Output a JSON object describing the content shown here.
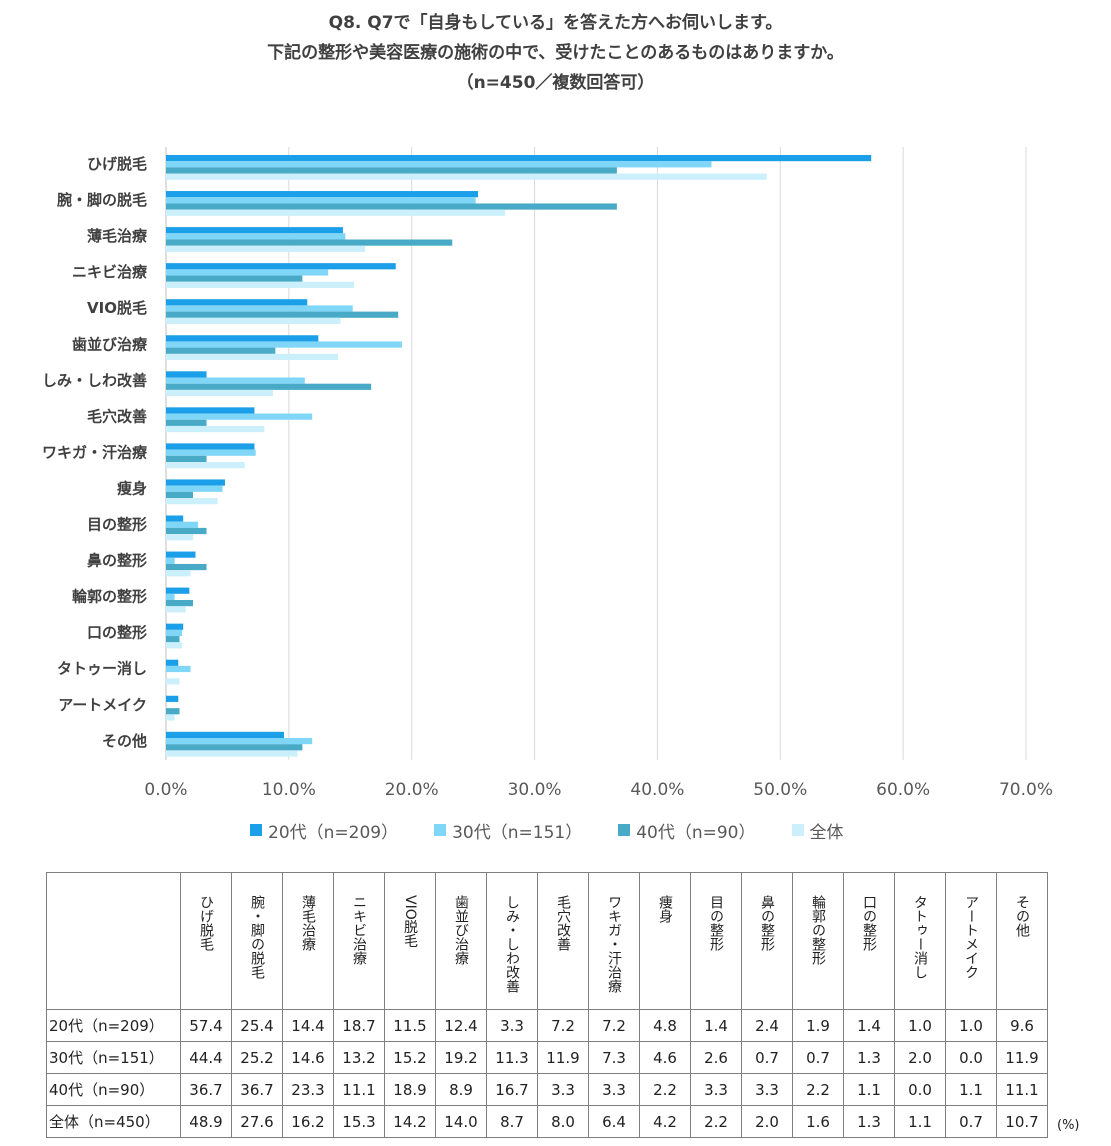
{
  "title_lines": [
    "Q8. Q7で「自身もしている」を答えた方へお伺いします。",
    "下記の整形や美容医療の施術の中で、受けたことのあるものはありますか。",
    "（n=450／複数回答可）"
  ],
  "chart_data": {
    "type": "bar",
    "orientation": "horizontal",
    "categories": [
      "ひげ脱毛",
      "腕・脚の脱毛",
      "薄毛治療",
      "ニキビ治療",
      "VIO脱毛",
      "歯並び治療",
      "しみ・しわ改善",
      "毛穴改善",
      "ワキガ・汗治療",
      "痩身",
      "目の整形",
      "鼻の整形",
      "輪郭の整形",
      "口の整形",
      "タトゥー消し",
      "アートメイク",
      "その他"
    ],
    "series": [
      {
        "name": "20代（n=209）",
        "color": "#1a9fe8",
        "values": [
          57.4,
          25.4,
          14.4,
          18.7,
          11.5,
          12.4,
          3.3,
          7.2,
          7.2,
          4.8,
          1.4,
          2.4,
          1.9,
          1.4,
          1.0,
          1.0,
          9.6
        ]
      },
      {
        "name": "30代（n=151）",
        "color": "#7fd6f7",
        "values": [
          44.4,
          25.2,
          14.6,
          13.2,
          15.2,
          19.2,
          11.3,
          11.9,
          7.3,
          4.6,
          2.6,
          0.7,
          0.7,
          1.3,
          2.0,
          0.0,
          11.9
        ]
      },
      {
        "name": "40代（n=90）",
        "color": "#48aac6",
        "values": [
          36.7,
          36.7,
          23.3,
          11.1,
          18.9,
          8.9,
          16.7,
          3.3,
          3.3,
          2.2,
          3.3,
          3.3,
          2.2,
          1.1,
          0.0,
          1.1,
          11.1
        ]
      },
      {
        "name": "全体",
        "color": "#cbeffb",
        "values": [
          48.9,
          27.6,
          16.2,
          15.3,
          14.2,
          14.0,
          8.7,
          8.0,
          6.4,
          4.2,
          2.2,
          2.0,
          1.6,
          1.3,
          1.1,
          0.7,
          10.7
        ]
      }
    ],
    "xlim": [
      0,
      70
    ],
    "xticks": [
      "0.0%",
      "10.0%",
      "20.0%",
      "30.0%",
      "40.0%",
      "50.0%",
      "60.0%",
      "70.0%"
    ],
    "grid": true,
    "legend_position": "bottom"
  },
  "table": {
    "row_labels": [
      "20代（n=209）",
      "30代（n=151）",
      "40代（n=90）",
      "全体（n=450）"
    ],
    "rows": [
      [
        "57.4",
        "25.4",
        "14.4",
        "18.7",
        "11.5",
        "12.4",
        "3.3",
        "7.2",
        "7.2",
        "4.8",
        "1.4",
        "2.4",
        "1.9",
        "1.4",
        "1.0",
        "1.0",
        "9.6"
      ],
      [
        "44.4",
        "25.2",
        "14.6",
        "13.2",
        "15.2",
        "19.2",
        "11.3",
        "11.9",
        "7.3",
        "4.6",
        "2.6",
        "0.7",
        "0.7",
        "1.3",
        "2.0",
        "0.0",
        "11.9"
      ],
      [
        "36.7",
        "36.7",
        "23.3",
        "11.1",
        "18.9",
        "8.9",
        "16.7",
        "3.3",
        "3.3",
        "2.2",
        "3.3",
        "3.3",
        "2.2",
        "1.1",
        "0.0",
        "1.1",
        "11.1"
      ],
      [
        "48.9",
        "27.6",
        "16.2",
        "15.3",
        "14.2",
        "14.0",
        "8.7",
        "8.0",
        "6.4",
        "4.2",
        "2.2",
        "2.0",
        "1.6",
        "1.3",
        "1.1",
        "0.7",
        "10.7"
      ]
    ],
    "unit": "(%)"
  }
}
